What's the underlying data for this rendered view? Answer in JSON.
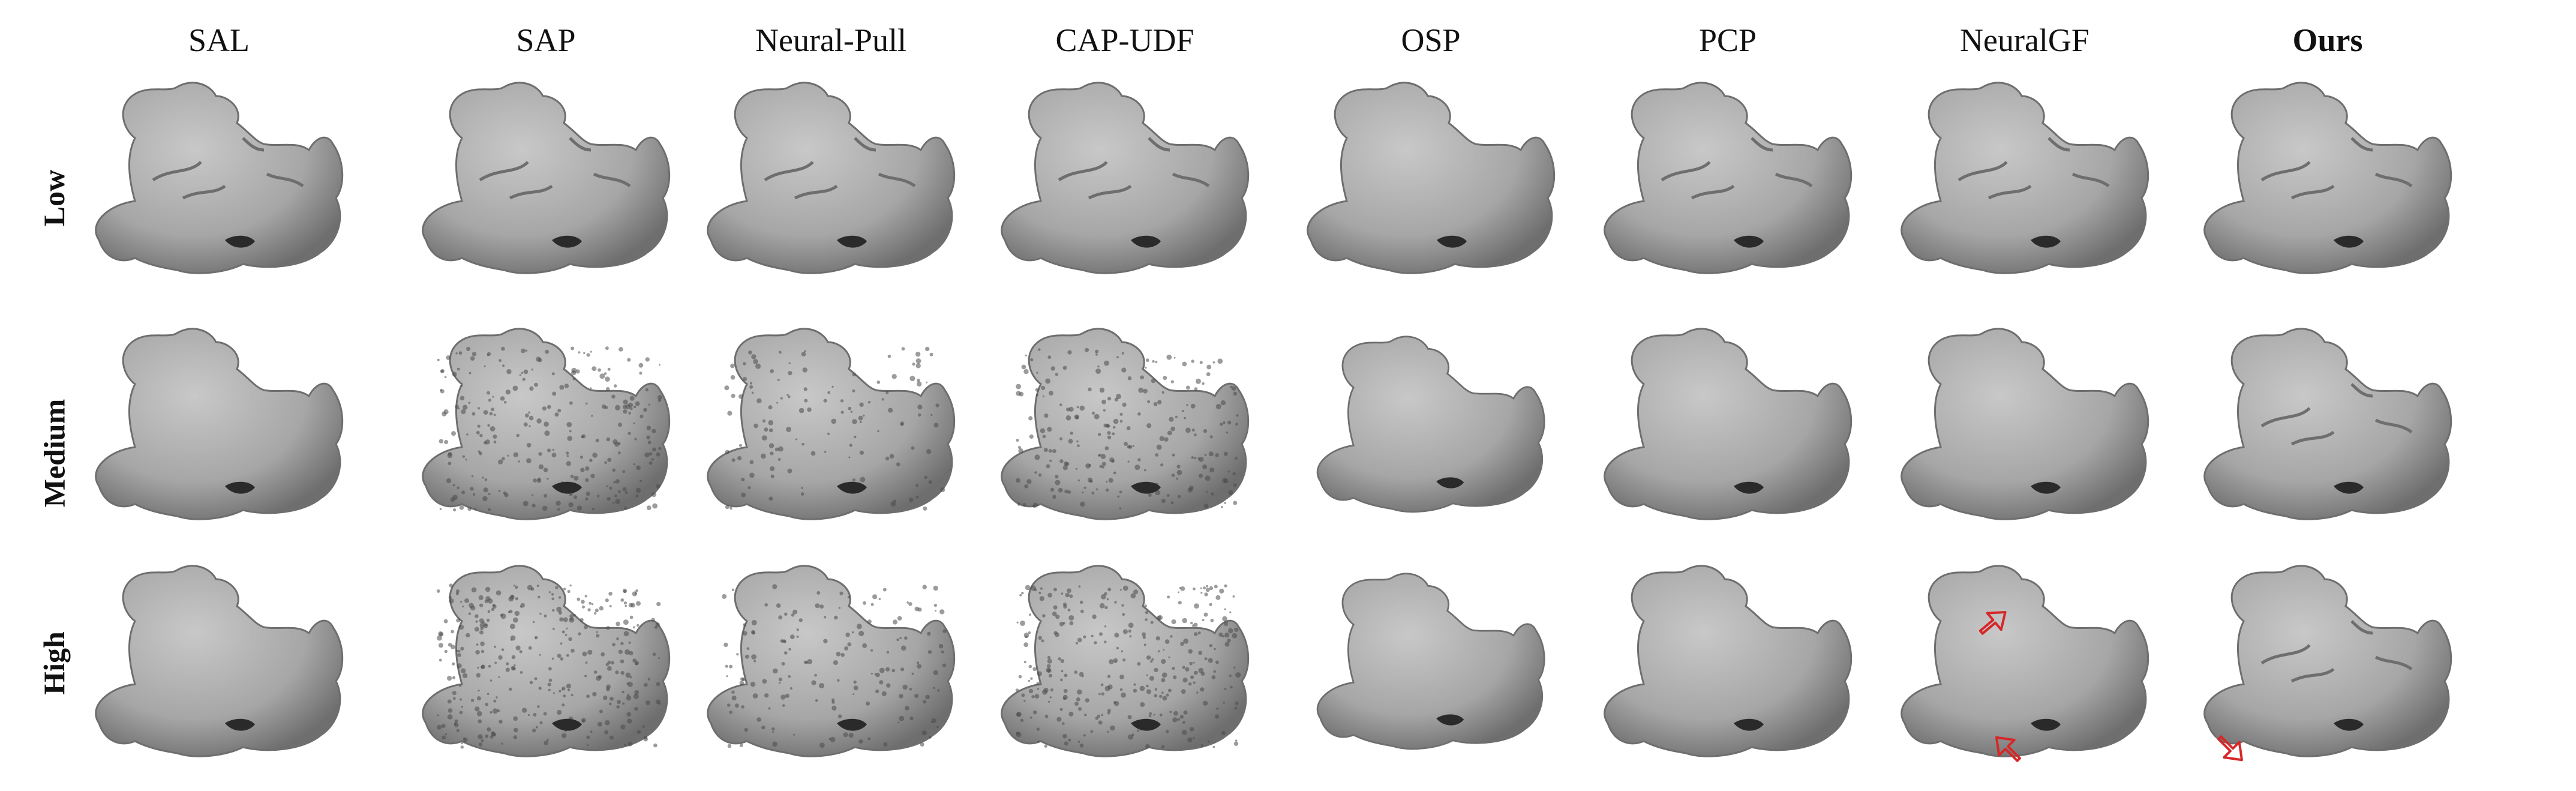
{
  "columns": [
    {
      "label": "SAL",
      "bold": false
    },
    {
      "label": "SAP",
      "bold": false
    },
    {
      "label": "Neural-Pull",
      "bold": false
    },
    {
      "label": "CAP-UDF",
      "bold": false
    },
    {
      "label": "OSP",
      "bold": false
    },
    {
      "label": "PCP",
      "bold": false
    },
    {
      "label": "NeuralGF",
      "bold": false
    },
    {
      "label": "Ours",
      "bold": true
    }
  ],
  "rows": [
    {
      "label": "Low"
    },
    {
      "label": "Medium"
    },
    {
      "label": "High"
    }
  ],
  "colors": {
    "background": "#ffffff",
    "mesh_fill": "#a6a6a6",
    "mesh_shadow": "#6e6e6e",
    "mesh_highlight": "#c8c8c8",
    "noise": "#4a4a4a",
    "arrow": "#d62728",
    "text": "#111111"
  }
}
